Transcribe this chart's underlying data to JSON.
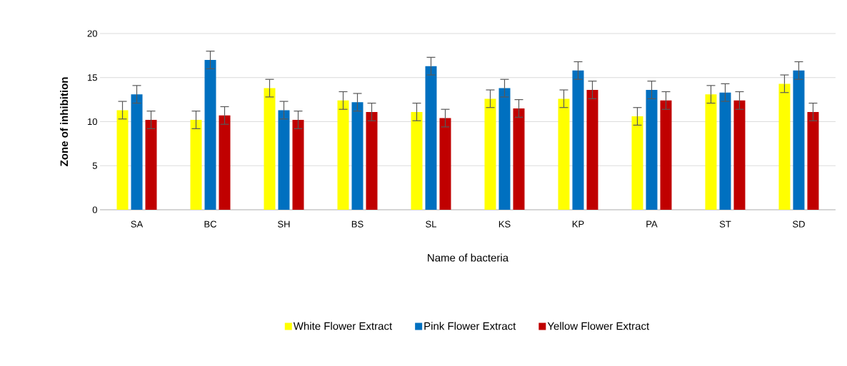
{
  "chart_data": {
    "type": "bar",
    "xlabel": "Name of bacteria",
    "ylabel": "Zone of inhibition",
    "categories": [
      "SA",
      "BC",
      "SH",
      "BS",
      "SL",
      "KS",
      "KP",
      "PA",
      "ST",
      "SD"
    ],
    "series": [
      {
        "name": "White Flower Extract",
        "color": "#ffff00",
        "values": [
          11.3,
          10.2,
          13.8,
          12.4,
          11.1,
          12.6,
          12.6,
          10.6,
          13.1,
          14.3
        ],
        "errors": [
          1,
          1,
          1,
          1,
          1,
          1,
          1,
          1,
          1,
          1
        ]
      },
      {
        "name": "Pink Flower Extract",
        "color": "#0070c0",
        "values": [
          13.1,
          17.0,
          11.3,
          12.2,
          16.3,
          13.8,
          15.8,
          13.6,
          13.3,
          15.8
        ],
        "errors": [
          1,
          1,
          1,
          1,
          1,
          1,
          1,
          1,
          1,
          1
        ]
      },
      {
        "name": "Yellow Flower Extract",
        "color": "#c00000",
        "values": [
          10.2,
          10.7,
          10.2,
          11.1,
          10.4,
          11.5,
          13.6,
          12.4,
          12.4,
          11.1
        ],
        "errors": [
          1,
          1,
          1,
          1,
          1,
          1,
          1,
          1,
          1,
          1
        ]
      }
    ],
    "ylim": [
      0,
      20
    ],
    "yticks": [
      0,
      5,
      10,
      15,
      20
    ],
    "grid": "y",
    "legend": "bottom"
  }
}
